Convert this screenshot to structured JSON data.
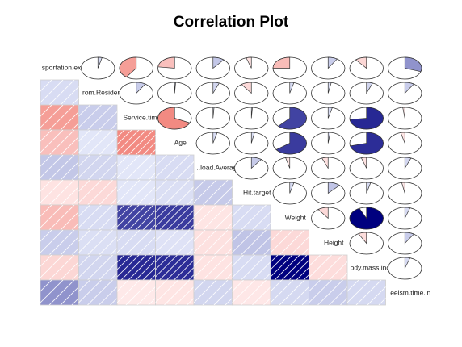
{
  "chart_data": {
    "type": "heatmap",
    "title": "Correlation Plot",
    "lower_panel": "shade",
    "upper_panel": "pie",
    "variables": [
      "sportation.expe",
      "rom.Residenc",
      "Service.time",
      "Age",
      "..load.Average",
      "Hit.target",
      "Weight",
      "Height",
      "ody.mass.inde",
      "eeism.time.in"
    ],
    "matrix": [
      [
        1.0,
        -0.04,
        0.4,
        0.23,
        -0.11,
        0.05,
        0.25,
        -0.09,
        0.11,
        -0.3
      ],
      [
        -0.04,
        1.0,
        -0.09,
        -0.01,
        -0.06,
        0.1,
        -0.04,
        -0.03,
        -0.06,
        -0.09
      ],
      [
        0.4,
        -0.09,
        1.0,
        0.68,
        -0.01,
        -0.01,
        -0.62,
        -0.04,
        -0.73,
        0.02
      ],
      [
        0.23,
        -0.01,
        0.68,
        1.0,
        -0.04,
        -0.03,
        -0.65,
        -0.02,
        -0.71,
        0.04
      ],
      [
        -0.11,
        -0.06,
        -0.01,
        -0.04,
        1.0,
        -0.1,
        0.04,
        0.06,
        0.05,
        -0.06
      ],
      [
        0.05,
        0.1,
        -0.01,
        -0.03,
        -0.1,
        1.0,
        -0.04,
        -0.12,
        -0.04,
        0.03
      ],
      [
        0.25,
        -0.04,
        -0.62,
        -0.65,
        0.04,
        -0.04,
        1.0,
        0.1,
        -0.93,
        -0.05
      ],
      [
        -0.09,
        -0.03,
        -0.04,
        -0.02,
        0.06,
        -0.12,
        0.1,
        1.0,
        0.08,
        -0.09
      ],
      [
        0.11,
        -0.06,
        -0.73,
        -0.71,
        0.05,
        -0.04,
        -0.93,
        0.08,
        1.0,
        -0.05
      ],
      [
        -0.3,
        -0.09,
        0.02,
        0.04,
        -0.06,
        0.03,
        -0.05,
        -0.09,
        -0.05,
        1.0
      ]
    ],
    "colors": {
      "positive": "#00007F",
      "negative": "#E7463F",
      "neutral": "#FFFFFF"
    }
  }
}
